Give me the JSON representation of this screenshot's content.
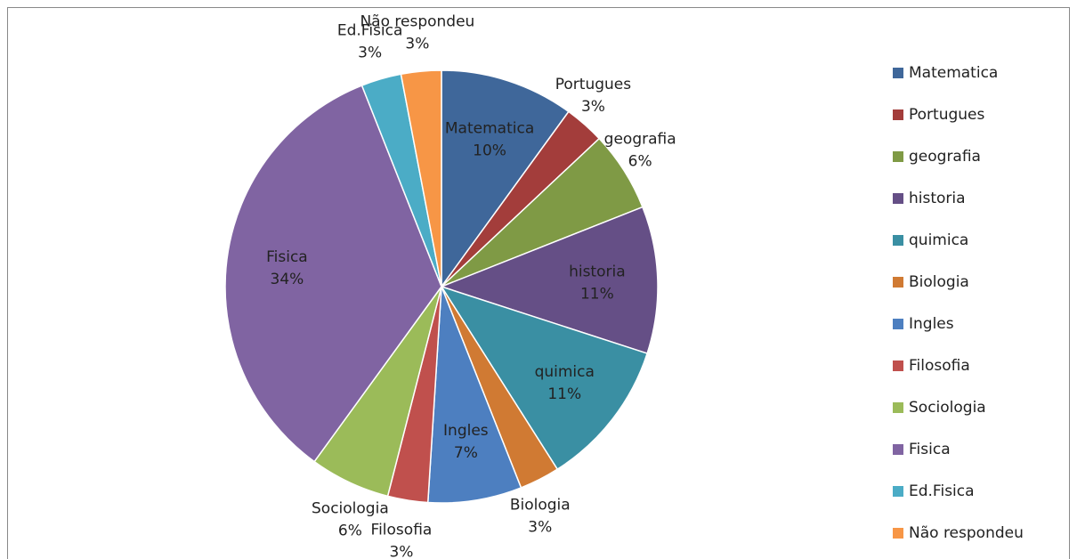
{
  "chart_data": {
    "type": "pie",
    "categories": [
      "Matematica",
      "Portugues",
      "geografia",
      "historia",
      "quimica",
      "Biologia",
      "Ingles",
      "Filosofia",
      "Sociologia",
      "Fisica",
      "Ed.Fisica",
      "Não respondeu"
    ],
    "values": [
      10,
      3,
      6,
      11,
      11,
      3,
      7,
      3,
      6,
      34,
      3,
      3
    ],
    "value_labels": [
      "10%",
      "3%",
      "6%",
      "11%",
      "11%",
      "3%",
      "7%",
      "3%",
      "6%",
      "34%",
      "3%",
      "3%"
    ],
    "colors": [
      "#3f679a",
      "#a33d3b",
      "#7f9a45",
      "#654f86",
      "#3a8fa3",
      "#d07a33",
      "#4d7fc0",
      "#c0504d",
      "#9bbb59",
      "#8064a2",
      "#4bacc6",
      "#f79646"
    ],
    "legend": "right"
  }
}
